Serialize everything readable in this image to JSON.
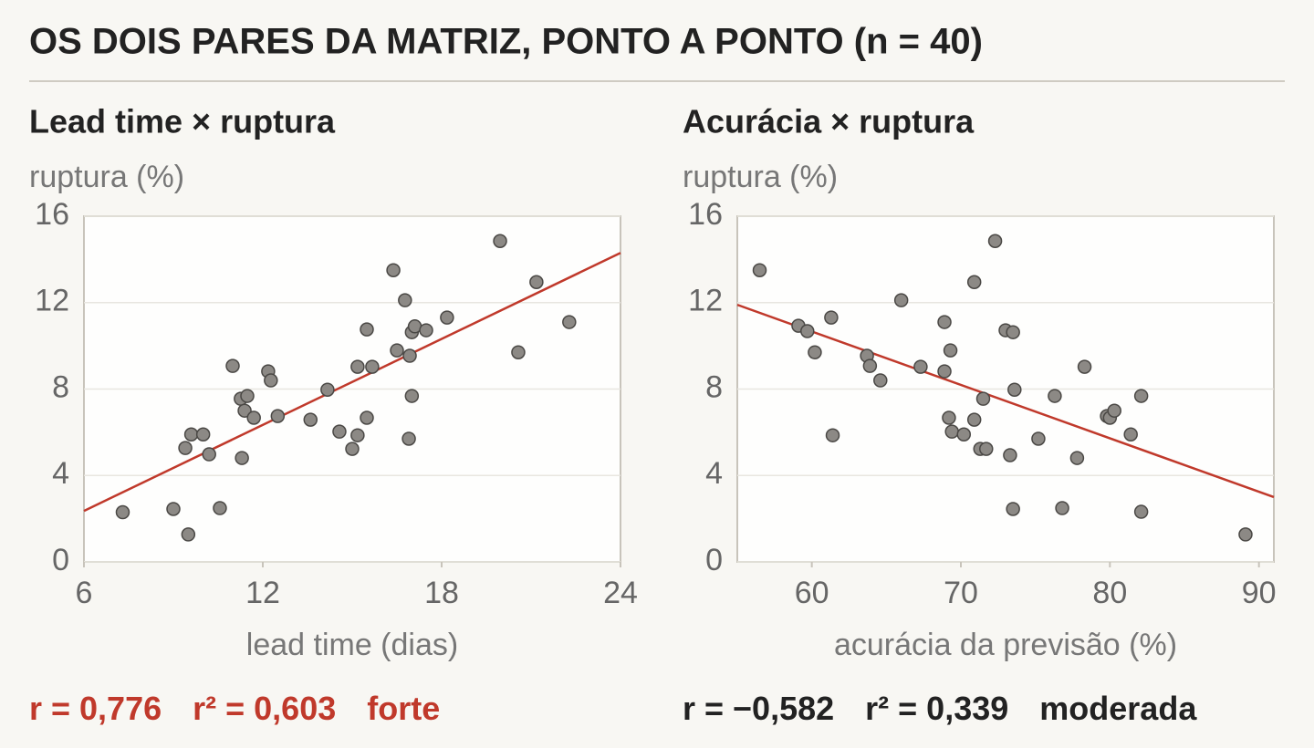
{
  "title": "OS DOIS PARES DA MATRIZ, PONTO A PONTO (n = 40)",
  "chart_data": [
    {
      "type": "scatter",
      "title": "Lead time × ruptura",
      "y_label": "ruptura (%)",
      "x_label": "lead time (dias)",
      "xlim": [
        6,
        24
      ],
      "ylim": [
        0,
        16
      ],
      "xticks": [
        6,
        12,
        18,
        24
      ],
      "yticks": [
        0,
        4,
        8,
        12,
        16
      ],
      "grid": true,
      "color": "#8c8985",
      "x": [
        7.3,
        9.0,
        9.5,
        9.4,
        9.6,
        10.0,
        10.2,
        10.56,
        10.99,
        11.26,
        11.39,
        11.48,
        11.3,
        11.7,
        12.18,
        12.27,
        12.5,
        13.6,
        14.17,
        14.57,
        15.0,
        15.18,
        15.18,
        15.49,
        15.49,
        15.67,
        16.38,
        16.5,
        16.77,
        16.93,
        16.9,
        17.0,
        17.0,
        17.1,
        17.48,
        18.18,
        19.96,
        20.57,
        21.18,
        22.28
      ],
      "values": [
        2.3,
        2.45,
        1.27,
        5.27,
        5.9,
        5.9,
        4.98,
        2.49,
        9.07,
        7.55,
        7.0,
        7.68,
        4.81,
        6.67,
        8.82,
        8.4,
        6.75,
        6.58,
        7.97,
        6.03,
        5.23,
        5.86,
        9.03,
        10.76,
        6.67,
        9.03,
        13.5,
        9.79,
        12.11,
        9.54,
        5.7,
        7.68,
        10.63,
        10.9,
        10.72,
        11.31,
        14.85,
        9.7,
        12.95,
        11.1
      ],
      "trendline": {
        "color": "#c0392b",
        "x": [
          6,
          24
        ],
        "values": [
          2.36,
          14.3
        ]
      },
      "stats": {
        "color": "#c0392b",
        "texts": [
          "r = 0,776",
          "r² = 0,603",
          "forte"
        ]
      }
    },
    {
      "type": "scatter",
      "title": "Acurácia × ruptura",
      "y_label": "ruptura (%)",
      "x_label": "acurácia da previsão (%)",
      "xlim": [
        55,
        91
      ],
      "ylim": [
        0,
        16
      ],
      "xticks": [
        60,
        70,
        80,
        90
      ],
      "yticks": [
        0,
        4,
        8,
        12,
        16
      ],
      "grid": true,
      "color": "#8c8985",
      "x": [
        56.5,
        59.1,
        59.7,
        61.3,
        60.2,
        61.4,
        63.7,
        63.9,
        64.6,
        66.0,
        67.3,
        68.9,
        68.9,
        69.3,
        69.2,
        69.4,
        70.2,
        70.9,
        70.9,
        71.3,
        71.7,
        71.5,
        72.3,
        73.0,
        73.5,
        73.3,
        73.5,
        73.6,
        75.2,
        76.3,
        76.8,
        77.8,
        78.3,
        79.8,
        80.0,
        80.3,
        81.4,
        82.1,
        82.1,
        89.1
      ],
      "values": [
        13.5,
        10.93,
        10.68,
        11.31,
        9.7,
        5.86,
        9.54,
        9.07,
        8.4,
        12.11,
        9.03,
        11.1,
        8.82,
        9.79,
        6.67,
        6.03,
        5.9,
        12.95,
        6.58,
        5.23,
        5.23,
        7.55,
        14.85,
        10.72,
        10.63,
        4.94,
        2.45,
        7.97,
        5.7,
        7.68,
        2.49,
        4.81,
        9.03,
        6.75,
        6.67,
        7.0,
        5.9,
        7.68,
        2.32,
        1.27
      ],
      "trendline": {
        "color": "#c0392b",
        "x": [
          55,
          91
        ],
        "values": [
          11.9,
          3.0
        ]
      },
      "stats": {
        "color": "#222222",
        "texts": [
          "r = −0,582",
          "r² = 0,339",
          "moderada"
        ]
      }
    }
  ]
}
